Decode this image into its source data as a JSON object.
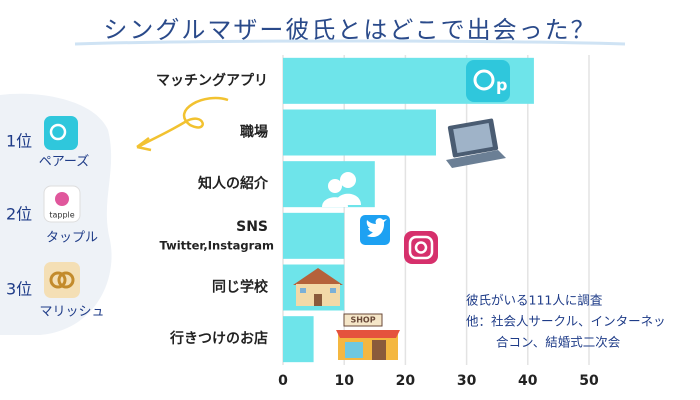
{
  "chart_data": {
    "type": "bar",
    "orientation": "horizontal",
    "title": "シングルマザー彼氏とはどこで出会った？",
    "categories": [
      "マッチングアプリ",
      "職場",
      "知人の紹介",
      "SNS",
      "同じ学校",
      "行きつけのお店"
    ],
    "category_sublabels": [
      null,
      null,
      null,
      "Twitter,Instagram",
      null,
      null
    ],
    "values": [
      41,
      25,
      15,
      10,
      10,
      5
    ],
    "color": "#6ee4ea",
    "xlim": [
      0,
      50
    ],
    "xticks": [
      0,
      10,
      20,
      30,
      40,
      50
    ],
    "grid": true,
    "annotations": [
      "彼氏がいる111人に調査",
      "他：社会人サークル、インターネッ",
      "合コン、結婚式二次会"
    ]
  },
  "ranking": [
    {
      "rank": "1位",
      "name": "ペアーズ"
    },
    {
      "rank": "2位",
      "name": "タップル",
      "icon_text": "tapple"
    },
    {
      "rank": "3位",
      "name": "マリッシュ"
    }
  ]
}
